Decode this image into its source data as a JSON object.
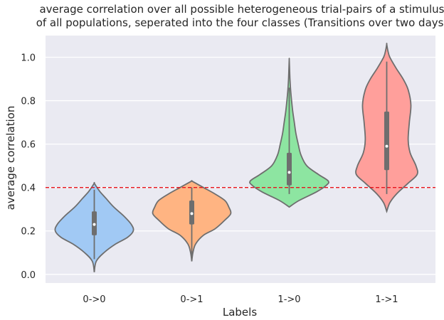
{
  "chart_data": {
    "type": "violin",
    "title_lines": [
      "average correlation over all possible heterogeneous trial-pairs of a stimulus",
      "of all populations, seperated into the four classes (Transitions over two days)"
    ],
    "xlabel": "Labels",
    "ylabel": "average correlation",
    "categories": [
      "0->0",
      "0->1",
      "1->0",
      "1->1"
    ],
    "ylim": [
      -0.04,
      1.1
    ],
    "yticks": [
      0.0,
      0.2,
      0.4,
      0.6,
      0.8,
      1.0
    ],
    "ytick_labels": [
      "0.0",
      "0.2",
      "0.4",
      "0.6",
      "0.8",
      "1.0"
    ],
    "grid": true,
    "colors": {
      "background": "#eaeaf2",
      "grid": "#ffffff",
      "violin_edge": "#6e6e6e",
      "box": "#6e6e6e",
      "median": "#ffffff",
      "threshold_line": "#e8141c",
      "categories": [
        "#a1c9f4",
        "#ffb482",
        "#8de5a1",
        "#ff9f9b"
      ]
    },
    "threshold": 0.4,
    "violins": [
      {
        "category": "0->0",
        "min": 0.01,
        "max": 0.42,
        "q1": 0.18,
        "median": 0.23,
        "q3": 0.29,
        "whisker_low": 0.07,
        "whisker_high": 0.39,
        "density": [
          [
            0.01,
            0.0
          ],
          [
            0.06,
            0.05
          ],
          [
            0.1,
            0.25
          ],
          [
            0.14,
            0.55
          ],
          [
            0.17,
            0.85
          ],
          [
            0.2,
            1.0
          ],
          [
            0.23,
            0.95
          ],
          [
            0.27,
            0.75
          ],
          [
            0.31,
            0.5
          ],
          [
            0.35,
            0.3
          ],
          [
            0.38,
            0.15
          ],
          [
            0.4,
            0.07
          ],
          [
            0.42,
            0.0
          ]
        ]
      },
      {
        "category": "0->1",
        "min": 0.06,
        "max": 0.43,
        "q1": 0.23,
        "median": 0.28,
        "q3": 0.34,
        "whisker_low": 0.08,
        "whisker_high": 0.4,
        "density": [
          [
            0.06,
            0.0
          ],
          [
            0.1,
            0.03
          ],
          [
            0.14,
            0.1
          ],
          [
            0.18,
            0.3
          ],
          [
            0.21,
            0.6
          ],
          [
            0.25,
            0.85
          ],
          [
            0.28,
            1.0
          ],
          [
            0.31,
            0.95
          ],
          [
            0.34,
            0.85
          ],
          [
            0.37,
            0.6
          ],
          [
            0.4,
            0.3
          ],
          [
            0.42,
            0.1
          ],
          [
            0.43,
            0.0
          ]
        ]
      },
      {
        "category": "1->0",
        "min": 0.31,
        "max": 0.99,
        "q1": 0.41,
        "median": 0.47,
        "q3": 0.56,
        "whisker_low": 0.37,
        "whisker_high": 0.86,
        "density": [
          [
            0.31,
            0.0
          ],
          [
            0.34,
            0.25
          ],
          [
            0.38,
            0.7
          ],
          [
            0.41,
            0.95
          ],
          [
            0.43,
            1.0
          ],
          [
            0.46,
            0.75
          ],
          [
            0.5,
            0.45
          ],
          [
            0.55,
            0.3
          ],
          [
            0.6,
            0.23
          ],
          [
            0.65,
            0.17
          ],
          [
            0.7,
            0.13
          ],
          [
            0.75,
            0.09
          ],
          [
            0.8,
            0.06
          ],
          [
            0.85,
            0.035
          ],
          [
            0.9,
            0.018
          ],
          [
            0.95,
            0.008
          ],
          [
            0.99,
            0.0
          ]
        ]
      },
      {
        "category": "1->1",
        "min": 0.29,
        "max": 1.06,
        "q1": 0.48,
        "median": 0.59,
        "q3": 0.75,
        "whisker_low": 0.37,
        "whisker_high": 0.98,
        "density": [
          [
            0.29,
            0.0
          ],
          [
            0.33,
            0.08
          ],
          [
            0.37,
            0.25
          ],
          [
            0.42,
            0.55
          ],
          [
            0.46,
            0.78
          ],
          [
            0.5,
            0.75
          ],
          [
            0.56,
            0.6
          ],
          [
            0.62,
            0.55
          ],
          [
            0.7,
            0.58
          ],
          [
            0.78,
            0.62
          ],
          [
            0.85,
            0.55
          ],
          [
            0.9,
            0.42
          ],
          [
            0.95,
            0.24
          ],
          [
            1.0,
            0.08
          ],
          [
            1.03,
            0.03
          ],
          [
            1.06,
            0.0
          ]
        ]
      }
    ]
  }
}
